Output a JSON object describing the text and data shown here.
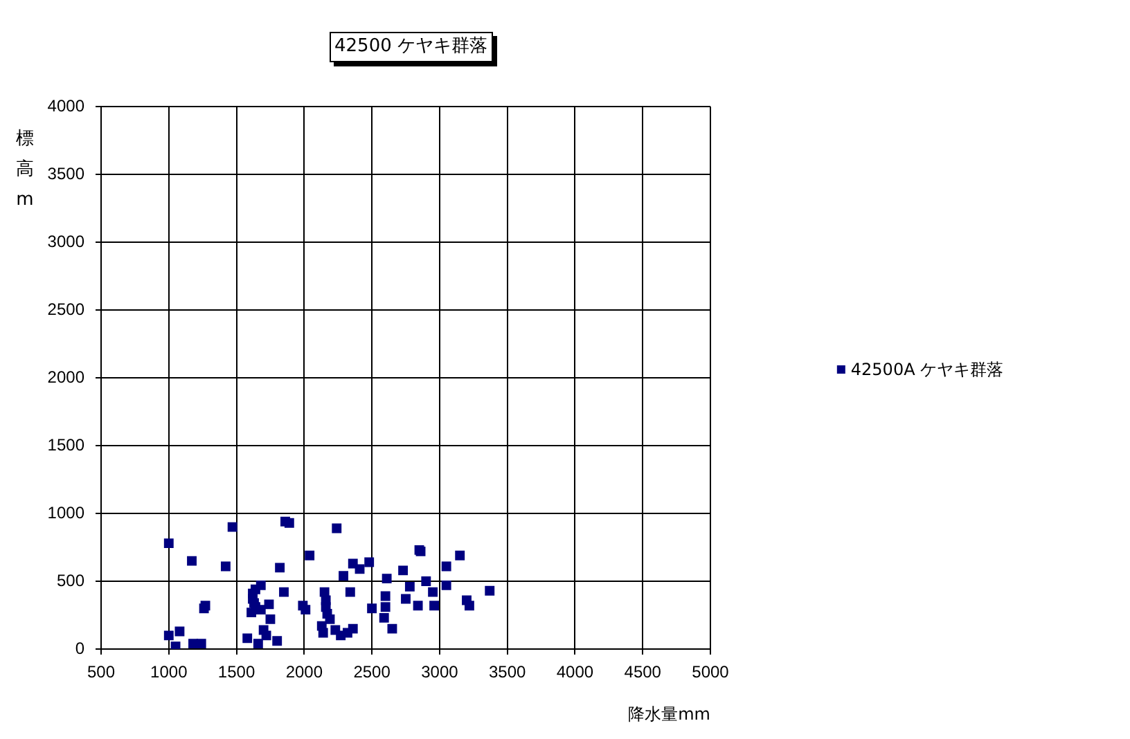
{
  "chart_data": {
    "type": "scatter",
    "title": "42500 ケヤキ群落",
    "xlabel": "降水量mm",
    "ylabel": "標高m",
    "x": [
      1000,
      1000,
      1050,
      1080,
      1170,
      1180,
      1240,
      1260,
      1270,
      1420,
      1470,
      1580,
      1610,
      1620,
      1620,
      1630,
      1640,
      1640,
      1660,
      1680,
      1680,
      1700,
      1720,
      1740,
      1750,
      1800,
      1820,
      1850,
      1860,
      1890,
      1990,
      2010,
      2040,
      2130,
      2140,
      2150,
      2160,
      2160,
      2170,
      2190,
      2230,
      2240,
      2270,
      2290,
      2320,
      2340,
      2360,
      2360,
      2410,
      2480,
      2500,
      2590,
      2600,
      2600,
      2610,
      2650,
      2730,
      2750,
      2780,
      2840,
      2850,
      2860,
      2900,
      2950,
      2960,
      3050,
      3050,
      3150,
      3200,
      3220,
      3370
    ],
    "series": [
      {
        "name": "42500A ケヤキ群落",
        "color": "#000080",
        "values": [
          780,
          100,
          20,
          130,
          650,
          40,
          40,
          300,
          320,
          610,
          900,
          80,
          270,
          370,
          410,
          340,
          440,
          310,
          40,
          470,
          290,
          140,
          100,
          330,
          220,
          60,
          600,
          420,
          940,
          930,
          320,
          290,
          690,
          170,
          120,
          420,
          360,
          310,
          260,
          220,
          140,
          890,
          100,
          540,
          120,
          420,
          150,
          630,
          590,
          640,
          300,
          230,
          390,
          310,
          520,
          150,
          580,
          370,
          460,
          320,
          730,
          720,
          500,
          420,
          320,
          610,
          470,
          690,
          360,
          320,
          430
        ]
      }
    ],
    "xlim": [
      500,
      5000
    ],
    "ylim": [
      0,
      4000
    ],
    "xticks": [
      500,
      1000,
      1500,
      2000,
      2500,
      3000,
      3500,
      4000,
      4500,
      5000
    ],
    "yticks": [
      0,
      500,
      1000,
      1500,
      2000,
      2500,
      3000,
      3500,
      4000
    ],
    "grid": true,
    "legend": "right",
    "marker": "square"
  }
}
